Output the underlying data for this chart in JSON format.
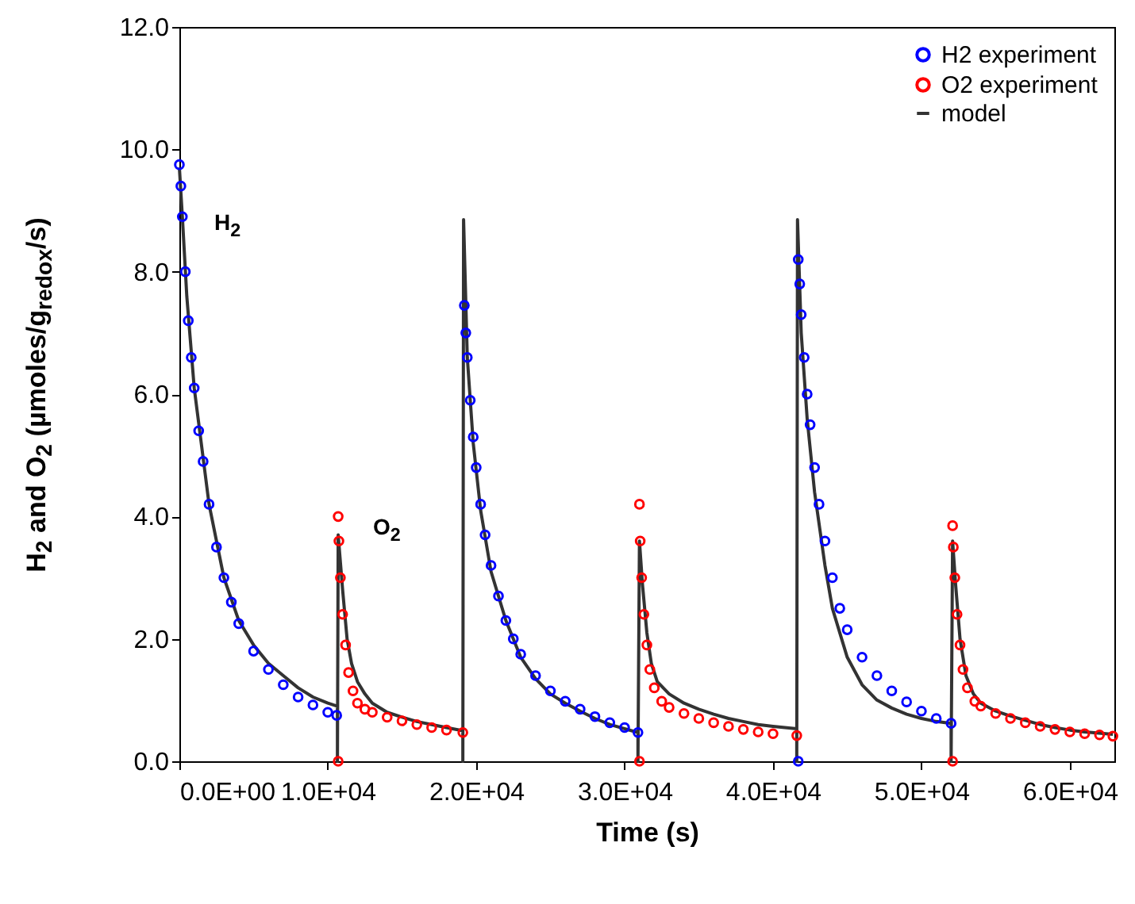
{
  "chart_data": {
    "type": "scatter",
    "xlabel": "Time (s)",
    "ylabel": "H$_{2}$ and O$_{2}$ (µmoles/g$_{redox}$/s)",
    "xlim": [
      0,
      63000
    ],
    "ylim": [
      0,
      12
    ],
    "xticks": [
      {
        "value": 0,
        "label": "0.0E+00"
      },
      {
        "value": 10000,
        "label": "1.0E+04"
      },
      {
        "value": 20000,
        "label": "2.0E+04"
      },
      {
        "value": 30000,
        "label": "3.0E+04"
      },
      {
        "value": 40000,
        "label": "4.0E+04"
      },
      {
        "value": 50000,
        "label": "5.0E+04"
      },
      {
        "value": 60000,
        "label": "6.0E+04"
      }
    ],
    "yticks": [
      {
        "value": 0,
        "label": "0.0"
      },
      {
        "value": 2,
        "label": "2.0"
      },
      {
        "value": 4,
        "label": "4.0"
      },
      {
        "value": 6,
        "label": "6.0"
      },
      {
        "value": 8,
        "label": "8.0"
      },
      {
        "value": 10,
        "label": "10.0"
      },
      {
        "value": 12,
        "label": "12.0"
      }
    ],
    "grid": false,
    "legend": "top right",
    "annotations": [
      "H$_{2}$",
      "O$_{2}$"
    ],
    "series": [
      {
        "name": "H2 experiment",
        "marker": "circle",
        "color": "#0000ff",
        "x": [
          0,
          100,
          200,
          400,
          600,
          800,
          1000,
          1300,
          1600,
          2000,
          2500,
          3000,
          3500,
          4000,
          5000,
          6000,
          7000,
          8000,
          9000,
          10000,
          10600,
          19200,
          19300,
          19400,
          19600,
          19800,
          20000,
          20300,
          20600,
          21000,
          21500,
          22000,
          22500,
          23000,
          24000,
          25000,
          26000,
          27000,
          28000,
          29000,
          30000,
          30900,
          41700,
          41700,
          41800,
          41900,
          42100,
          42300,
          42500,
          42800,
          43100,
          43500,
          44000,
          44500,
          45000,
          46000,
          47000,
          48000,
          49000,
          50000,
          51000,
          52000
        ],
        "values": [
          9.75,
          9.4,
          8.9,
          8.0,
          7.2,
          6.6,
          6.1,
          5.4,
          4.9,
          4.2,
          3.5,
          3.0,
          2.6,
          2.25,
          1.8,
          1.5,
          1.25,
          1.05,
          0.92,
          0.8,
          0.75,
          7.45,
          7.0,
          6.6,
          5.9,
          5.3,
          4.8,
          4.2,
          3.7,
          3.2,
          2.7,
          2.3,
          2.0,
          1.75,
          1.4,
          1.15,
          0.98,
          0.85,
          0.73,
          0.63,
          0.55,
          0.47,
          0,
          8.2,
          7.8,
          7.3,
          6.6,
          6.0,
          5.5,
          4.8,
          4.2,
          3.6,
          3.0,
          2.5,
          2.15,
          1.7,
          1.4,
          1.15,
          0.97,
          0.82,
          0.7,
          0.62
        ]
      },
      {
        "name": "O2 experiment",
        "marker": "circle",
        "color": "#ff0000",
        "x": [
          10700,
          10700,
          10750,
          10850,
          11000,
          11200,
          11400,
          11700,
          12000,
          12500,
          13000,
          14000,
          15000,
          16000,
          17000,
          18000,
          19100,
          31000,
          31000,
          31050,
          31150,
          31300,
          31500,
          31700,
          32000,
          32500,
          33000,
          34000,
          35000,
          36000,
          37000,
          38000,
          39000,
          40000,
          41600,
          52100,
          52100,
          52150,
          52250,
          52400,
          52600,
          52800,
          53100,
          53600,
          54000,
          55000,
          56000,
          57000,
          58000,
          59000,
          60000,
          61000,
          62000,
          62900
        ],
        "values": [
          0,
          4.0,
          3.6,
          3.0,
          2.4,
          1.9,
          1.45,
          1.15,
          0.95,
          0.85,
          0.8,
          0.72,
          0.66,
          0.6,
          0.55,
          0.51,
          0.47,
          0,
          4.2,
          3.6,
          3.0,
          2.4,
          1.9,
          1.5,
          1.2,
          0.98,
          0.88,
          0.78,
          0.7,
          0.63,
          0.57,
          0.52,
          0.48,
          0.45,
          0.42,
          0,
          3.85,
          3.5,
          3.0,
          2.4,
          1.9,
          1.5,
          1.2,
          0.98,
          0.9,
          0.78,
          0.7,
          0.63,
          0.57,
          0.52,
          0.48,
          0.45,
          0.43,
          0.41
        ]
      },
      {
        "name": "model",
        "type": "line",
        "marker": "none",
        "color": "#333333",
        "x": [
          0,
          200,
          500,
          1000,
          2000,
          3000,
          4000,
          5000,
          6000,
          7000,
          8000,
          9000,
          10000,
          10650,
          10650,
          10700,
          10800,
          11000,
          11300,
          11600,
          12000,
          12500,
          13000,
          14000,
          15000,
          16000,
          17000,
          18000,
          19100,
          19100,
          19150,
          19400,
          19800,
          20300,
          21000,
          22000,
          23000,
          24000,
          25000,
          26000,
          27000,
          28000,
          29000,
          30900,
          30900,
          31000,
          31200,
          31500,
          31800,
          32200,
          33000,
          34000,
          35000,
          36000,
          37000,
          38000,
          39000,
          40000,
          41600,
          41600,
          41650,
          41900,
          42300,
          42800,
          43500,
          44000,
          45000,
          46000,
          47000,
          48000,
          49000,
          50000,
          51000,
          52000,
          52000,
          52100,
          52300,
          52600,
          53000,
          53500,
          54000,
          55000,
          56000,
          57000,
          58000,
          59000,
          60000,
          61000,
          62900
        ],
        "values": [
          9.7,
          8.9,
          7.6,
          6.1,
          4.2,
          3.0,
          2.3,
          1.9,
          1.6,
          1.4,
          1.2,
          1.05,
          0.95,
          0.9,
          0,
          3.7,
          3.4,
          2.8,
          2.0,
          1.6,
          1.3,
          1.1,
          0.95,
          0.8,
          0.72,
          0.65,
          0.6,
          0.55,
          0.5,
          0,
          8.85,
          6.6,
          5.2,
          4.1,
          3.1,
          2.3,
          1.7,
          1.35,
          1.1,
          0.95,
          0.82,
          0.7,
          0.6,
          0.47,
          0,
          3.6,
          2.9,
          2.1,
          1.6,
          1.3,
          1.1,
          0.95,
          0.85,
          0.77,
          0.7,
          0.65,
          0.6,
          0.57,
          0.53,
          0,
          8.85,
          7.0,
          5.6,
          4.4,
          3.2,
          2.5,
          1.7,
          1.25,
          1.0,
          0.87,
          0.77,
          0.7,
          0.65,
          0.62,
          0,
          3.6,
          2.9,
          2.0,
          1.4,
          1.1,
          0.95,
          0.82,
          0.74,
          0.67,
          0.6,
          0.55,
          0.51,
          0.48,
          0.44
        ]
      }
    ]
  }
}
